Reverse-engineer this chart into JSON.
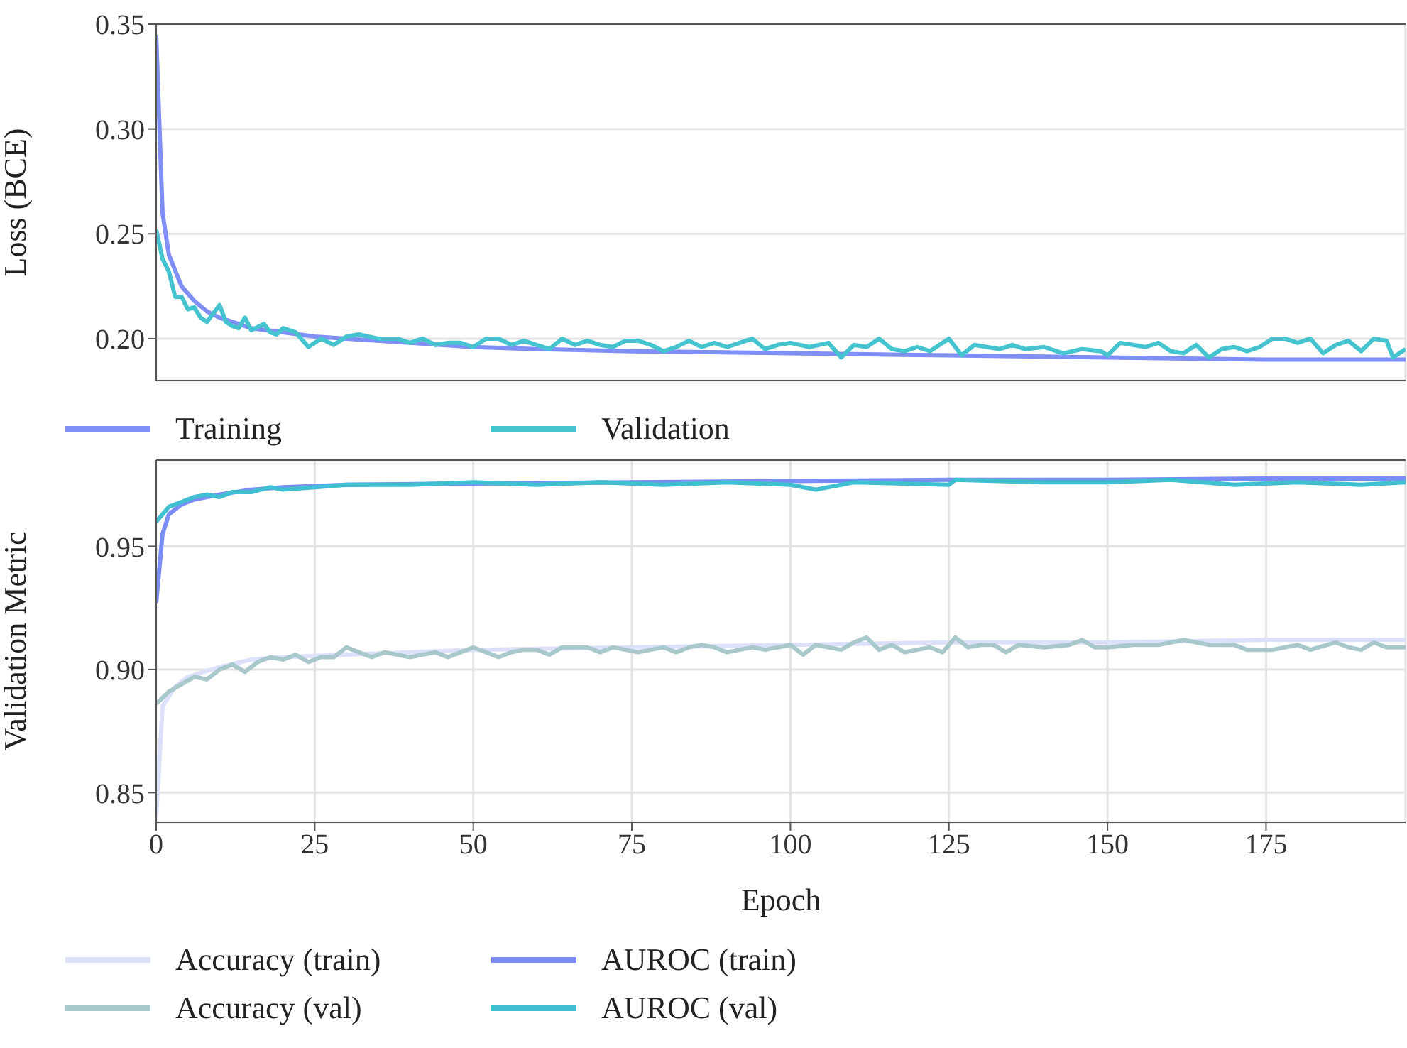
{
  "chart_data": [
    {
      "type": "line",
      "ylabel": "Loss (BCE)",
      "xlim": [
        0,
        197
      ],
      "xticks": [
        0,
        25,
        50,
        75,
        100,
        125,
        150,
        175
      ],
      "ylim": [
        0.18,
        0.35
      ],
      "yticks": [
        {
          "value": 0.2,
          "label": "0.20"
        },
        {
          "value": 0.25,
          "label": "0.25"
        },
        {
          "value": 0.3,
          "label": "0.30"
        },
        {
          "value": 0.35,
          "label": "0.35"
        }
      ],
      "grid": true,
      "legend": "bottom",
      "tick_labels": "y",
      "series": [
        {
          "name": "Training",
          "color": "#7f8ff5",
          "x": [
            0,
            1,
            2,
            4,
            6,
            8,
            10,
            15,
            20,
            25,
            30,
            40,
            50,
            60,
            75,
            100,
            125,
            150,
            175,
            197
          ],
          "values": [
            0.345,
            0.26,
            0.24,
            0.225,
            0.218,
            0.213,
            0.21,
            0.205,
            0.203,
            0.201,
            0.2,
            0.198,
            0.196,
            0.195,
            0.194,
            0.193,
            0.192,
            0.191,
            0.19,
            0.19
          ]
        },
        {
          "name": "Validation",
          "color": "#45c4d0",
          "x": [
            0,
            1,
            2,
            3,
            4,
            5,
            6,
            7,
            8,
            9,
            10,
            11,
            12,
            13,
            14,
            15,
            17,
            18,
            19,
            20,
            22,
            24,
            26,
            28,
            30,
            32,
            35,
            38,
            40,
            42,
            44,
            46,
            48,
            50,
            52,
            54,
            56,
            58,
            60,
            62,
            64,
            66,
            68,
            70,
            72,
            74,
            76,
            78,
            80,
            82,
            84,
            86,
            88,
            90,
            92,
            94,
            96,
            98,
            100,
            103,
            106,
            108,
            110,
            112,
            114,
            116,
            118,
            120,
            122,
            124,
            125,
            127,
            129,
            131,
            133,
            135,
            137,
            140,
            143,
            146,
            149,
            150,
            152,
            154,
            156,
            158,
            160,
            162,
            164,
            166,
            168,
            170,
            172,
            174,
            176,
            178,
            180,
            182,
            184,
            186,
            188,
            190,
            192,
            194,
            195,
            197
          ],
          "values": [
            0.252,
            0.238,
            0.232,
            0.22,
            0.22,
            0.214,
            0.215,
            0.21,
            0.208,
            0.212,
            0.216,
            0.208,
            0.206,
            0.205,
            0.21,
            0.204,
            0.207,
            0.203,
            0.202,
            0.205,
            0.203,
            0.196,
            0.2,
            0.197,
            0.201,
            0.202,
            0.2,
            0.2,
            0.198,
            0.2,
            0.197,
            0.198,
            0.198,
            0.196,
            0.2,
            0.2,
            0.197,
            0.199,
            0.197,
            0.195,
            0.2,
            0.197,
            0.199,
            0.197,
            0.196,
            0.199,
            0.199,
            0.197,
            0.194,
            0.196,
            0.199,
            0.196,
            0.198,
            0.196,
            0.198,
            0.2,
            0.195,
            0.197,
            0.198,
            0.196,
            0.198,
            0.191,
            0.197,
            0.196,
            0.2,
            0.195,
            0.194,
            0.196,
            0.194,
            0.198,
            0.2,
            0.192,
            0.197,
            0.196,
            0.195,
            0.197,
            0.195,
            0.196,
            0.193,
            0.195,
            0.194,
            0.192,
            0.198,
            0.197,
            0.196,
            0.198,
            0.194,
            0.193,
            0.197,
            0.191,
            0.195,
            0.196,
            0.194,
            0.196,
            0.2,
            0.2,
            0.198,
            0.2,
            0.193,
            0.197,
            0.199,
            0.194,
            0.2,
            0.199,
            0.191,
            0.195
          ]
        }
      ]
    },
    {
      "type": "line",
      "xlabel": "Epoch",
      "ylabel": "Validation Metric",
      "xlim": [
        0,
        197
      ],
      "xticks": [
        0,
        25,
        50,
        75,
        100,
        125,
        150,
        175
      ],
      "ylim": [
        0.838,
        0.985
      ],
      "yticks": [
        {
          "value": 0.85,
          "label": "0.85"
        },
        {
          "value": 0.9,
          "label": "0.90"
        },
        {
          "value": 0.95,
          "label": "0.95"
        }
      ],
      "grid": true,
      "legend": "bottom",
      "series": [
        {
          "name": "Accuracy (train)",
          "color": "#dde0fa",
          "x": [
            0,
            1,
            3,
            5,
            10,
            15,
            20,
            30,
            50,
            75,
            100,
            125,
            150,
            175,
            197
          ],
          "values": [
            0.84,
            0.885,
            0.893,
            0.897,
            0.901,
            0.904,
            0.905,
            0.906,
            0.908,
            0.909,
            0.91,
            0.911,
            0.911,
            0.912,
            0.912
          ]
        },
        {
          "name": "Accuracy (val)",
          "color": "#a8c8cc",
          "x": [
            0,
            2,
            4,
            6,
            8,
            10,
            12,
            14,
            16,
            18,
            20,
            22,
            24,
            26,
            28,
            30,
            32,
            34,
            36,
            38,
            40,
            44,
            46,
            48,
            50,
            52,
            54,
            56,
            58,
            60,
            62,
            64,
            66,
            68,
            70,
            72,
            76,
            80,
            82,
            84,
            86,
            88,
            90,
            94,
            96,
            100,
            102,
            104,
            108,
            110,
            112,
            114,
            116,
            118,
            122,
            124,
            126,
            128,
            130,
            132,
            134,
            136,
            140,
            144,
            146,
            148,
            150,
            154,
            158,
            162,
            166,
            170,
            172,
            176,
            180,
            182,
            186,
            188,
            190,
            192,
            194,
            197
          ],
          "values": [
            0.886,
            0.891,
            0.894,
            0.897,
            0.896,
            0.9,
            0.902,
            0.899,
            0.903,
            0.905,
            0.904,
            0.906,
            0.903,
            0.905,
            0.905,
            0.909,
            0.907,
            0.905,
            0.907,
            0.906,
            0.905,
            0.907,
            0.905,
            0.907,
            0.909,
            0.907,
            0.905,
            0.907,
            0.908,
            0.908,
            0.906,
            0.909,
            0.909,
            0.909,
            0.907,
            0.909,
            0.907,
            0.909,
            0.907,
            0.909,
            0.91,
            0.909,
            0.907,
            0.909,
            0.908,
            0.91,
            0.906,
            0.91,
            0.908,
            0.911,
            0.913,
            0.908,
            0.91,
            0.907,
            0.909,
            0.907,
            0.913,
            0.909,
            0.91,
            0.91,
            0.907,
            0.91,
            0.909,
            0.91,
            0.912,
            0.909,
            0.909,
            0.91,
            0.91,
            0.912,
            0.91,
            0.91,
            0.908,
            0.908,
            0.91,
            0.908,
            0.911,
            0.909,
            0.908,
            0.911,
            0.909,
            0.909
          ]
        },
        {
          "name": "AUROC (train)",
          "color": "#7a8cf5",
          "x": [
            0,
            1,
            2,
            4,
            6,
            10,
            15,
            20,
            30,
            50,
            75,
            100,
            125,
            150,
            175,
            197
          ],
          "values": [
            0.927,
            0.955,
            0.963,
            0.967,
            0.969,
            0.971,
            0.973,
            0.974,
            0.975,
            0.9755,
            0.976,
            0.9765,
            0.977,
            0.977,
            0.9775,
            0.9775
          ]
        },
        {
          "name": "AUROC (val)",
          "color": "#3fbfcf",
          "x": [
            0,
            2,
            4,
            6,
            8,
            10,
            12,
            15,
            18,
            20,
            25,
            30,
            40,
            50,
            60,
            70,
            80,
            90,
            100,
            104,
            110,
            125,
            126,
            140,
            150,
            160,
            170,
            180,
            190,
            197
          ],
          "values": [
            0.96,
            0.966,
            0.968,
            0.97,
            0.971,
            0.97,
            0.972,
            0.972,
            0.974,
            0.973,
            0.974,
            0.975,
            0.975,
            0.976,
            0.975,
            0.976,
            0.975,
            0.976,
            0.975,
            0.973,
            0.976,
            0.975,
            0.977,
            0.976,
            0.976,
            0.977,
            0.975,
            0.976,
            0.975,
            0.976
          ]
        }
      ]
    }
  ]
}
